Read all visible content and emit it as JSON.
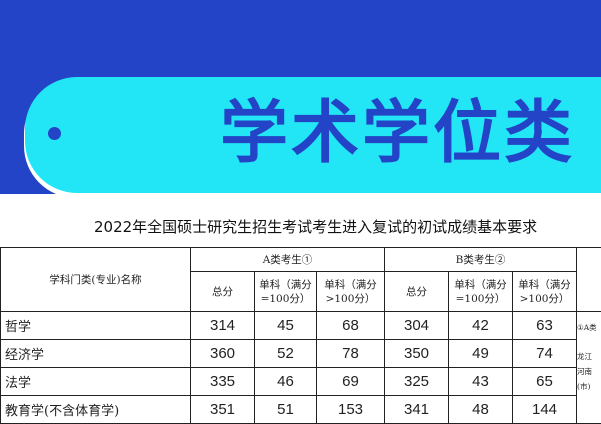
{
  "banner": {
    "title": "学术学位类"
  },
  "table": {
    "title": "2022年全国硕士研究生招生考试考生进入复试的初试成绩基本要求",
    "subject_header": "学科门类(专业)名称",
    "group_a": "A类考生①",
    "group_b": "B类考生②",
    "col_total": "总分",
    "col_single100": "单科（满分=100分）",
    "col_single_gt100": "单科（满分>100分）",
    "rows": [
      {
        "name": "哲学",
        "a": [
          "314",
          "45",
          "68"
        ],
        "b": [
          "304",
          "42",
          "63"
        ]
      },
      {
        "name": "经济学",
        "a": [
          "360",
          "52",
          "78"
        ],
        "b": [
          "350",
          "49",
          "74"
        ]
      },
      {
        "name": "法学",
        "a": [
          "335",
          "46",
          "69"
        ],
        "b": [
          "325",
          "43",
          "65"
        ]
      },
      {
        "name": "教育学(不含体育学)",
        "a": [
          "351",
          "51",
          "153"
        ],
        "b": [
          "341",
          "48",
          "144"
        ]
      }
    ],
    "note_fragments": [
      "①A类",
      "龙江",
      "河南",
      "(市)"
    ]
  }
}
